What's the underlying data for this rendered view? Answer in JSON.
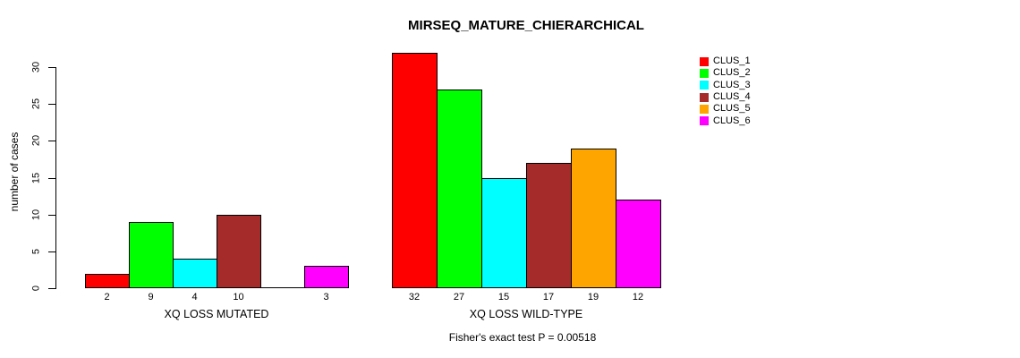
{
  "chart_data": {
    "type": "bar",
    "title": "MIRSEQ_MATURE_CHIERARCHICAL",
    "ylabel": "number of cases",
    "ylim": [
      0,
      32
    ],
    "yticks": [
      0,
      5,
      10,
      15,
      20,
      25,
      30
    ],
    "grid": false,
    "legend_position": "top-right",
    "legend": [
      {
        "label": "CLUS_1",
        "color": "#FF0000"
      },
      {
        "label": "CLUS_2",
        "color": "#00FF00"
      },
      {
        "label": "CLUS_3",
        "color": "#00FFFF"
      },
      {
        "label": "CLUS_4",
        "color": "#A52A2A"
      },
      {
        "label": "CLUS_5",
        "color": "#FFA500"
      },
      {
        "label": "CLUS_6",
        "color": "#FF00FF"
      }
    ],
    "groups": [
      {
        "label": "XQ LOSS MUTATED",
        "values": [
          2,
          9,
          4,
          10,
          0,
          3
        ]
      },
      {
        "label": "XQ LOSS WILD-TYPE",
        "values": [
          32,
          27,
          15,
          17,
          19,
          12
        ]
      }
    ],
    "bar_value_labels": [
      [
        "2",
        "9",
        "4",
        "10",
        "",
        "3"
      ],
      [
        "32",
        "27",
        "15",
        "17",
        "19",
        "12"
      ]
    ],
    "footnote": "Fisher's exact test P = 0.00518"
  }
}
